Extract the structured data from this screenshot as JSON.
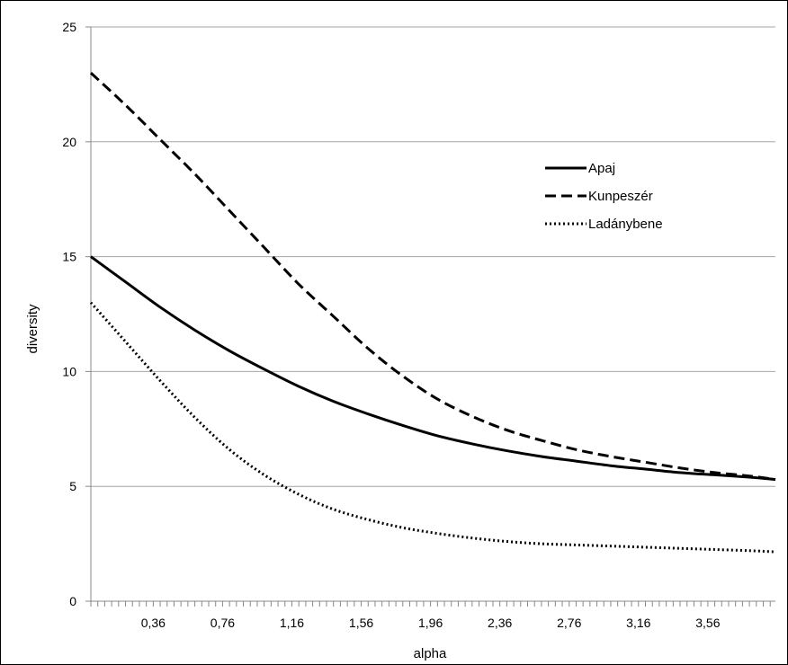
{
  "chart_data": {
    "type": "line",
    "title": "",
    "xlabel": "alpha",
    "ylabel": "diversity",
    "xlim": [
      0,
      3.95
    ],
    "ylim": [
      0,
      25
    ],
    "yticks": [
      "0",
      "5",
      "10",
      "15",
      "20",
      "25"
    ],
    "xticks": [
      {
        "value": 0.36,
        "label": "0,36"
      },
      {
        "value": 0.76,
        "label": "0,76"
      },
      {
        "value": 1.16,
        "label": "1,16"
      },
      {
        "value": 1.56,
        "label": "1,56"
      },
      {
        "value": 1.96,
        "label": "1,96"
      },
      {
        "value": 2.36,
        "label": "2,36"
      },
      {
        "value": 2.76,
        "label": "2,76"
      },
      {
        "value": 3.16,
        "label": "3,16"
      },
      {
        "value": 3.56,
        "label": "3,56"
      }
    ],
    "minor_tick_step": 0.04,
    "grid": {
      "horizontal": true,
      "vertical": false
    },
    "legend": {
      "position": "right"
    },
    "series": [
      {
        "name": "Apaj",
        "style": "solid",
        "color": "#000000",
        "points": [
          [
            0.0,
            15.0
          ],
          [
            0.2,
            13.9
          ],
          [
            0.4,
            12.8
          ],
          [
            0.6,
            11.8
          ],
          [
            0.8,
            10.9
          ],
          [
            1.0,
            10.1
          ],
          [
            1.2,
            9.35
          ],
          [
            1.4,
            8.7
          ],
          [
            1.6,
            8.15
          ],
          [
            1.8,
            7.65
          ],
          [
            2.0,
            7.2
          ],
          [
            2.2,
            6.85
          ],
          [
            2.4,
            6.55
          ],
          [
            2.6,
            6.3
          ],
          [
            2.8,
            6.1
          ],
          [
            3.0,
            5.9
          ],
          [
            3.2,
            5.75
          ],
          [
            3.4,
            5.6
          ],
          [
            3.6,
            5.5
          ],
          [
            3.8,
            5.4
          ],
          [
            3.95,
            5.3
          ]
        ]
      },
      {
        "name": "Kunpeszér",
        "style": "dashed",
        "color": "#000000",
        "points": [
          [
            0.0,
            23.0
          ],
          [
            0.2,
            21.6
          ],
          [
            0.4,
            20.1
          ],
          [
            0.6,
            18.6
          ],
          [
            0.8,
            17.0
          ],
          [
            1.0,
            15.4
          ],
          [
            1.2,
            13.8
          ],
          [
            1.4,
            12.4
          ],
          [
            1.6,
            11.0
          ],
          [
            1.8,
            9.8
          ],
          [
            2.0,
            8.8
          ],
          [
            2.2,
            8.05
          ],
          [
            2.4,
            7.45
          ],
          [
            2.6,
            7.0
          ],
          [
            2.8,
            6.6
          ],
          [
            3.0,
            6.3
          ],
          [
            3.2,
            6.05
          ],
          [
            3.4,
            5.8
          ],
          [
            3.6,
            5.6
          ],
          [
            3.8,
            5.45
          ],
          [
            3.95,
            5.3
          ]
        ]
      },
      {
        "name": "Ladánybene",
        "style": "dotted",
        "color": "#000000",
        "points": [
          [
            0.0,
            13.0
          ],
          [
            0.2,
            11.3
          ],
          [
            0.4,
            9.6
          ],
          [
            0.6,
            8.0
          ],
          [
            0.8,
            6.6
          ],
          [
            1.0,
            5.5
          ],
          [
            1.2,
            4.65
          ],
          [
            1.4,
            4.0
          ],
          [
            1.6,
            3.55
          ],
          [
            1.8,
            3.2
          ],
          [
            2.0,
            2.95
          ],
          [
            2.2,
            2.75
          ],
          [
            2.4,
            2.6
          ],
          [
            2.6,
            2.5
          ],
          [
            2.8,
            2.45
          ],
          [
            3.0,
            2.4
          ],
          [
            3.2,
            2.35
          ],
          [
            3.4,
            2.3
          ],
          [
            3.6,
            2.25
          ],
          [
            3.8,
            2.2
          ],
          [
            3.95,
            2.15
          ]
        ]
      }
    ]
  }
}
